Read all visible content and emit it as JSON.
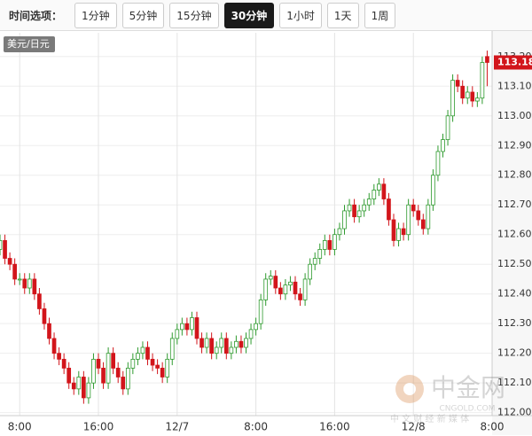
{
  "toolbar": {
    "label": "时间选项：",
    "buttons": [
      "1分钟",
      "5分钟",
      "15分钟",
      "30分钟",
      "1小时",
      "1天",
      "1周"
    ],
    "active": 3
  },
  "chart_data": {
    "type": "candlestick",
    "series_label": "美元/日元",
    "x": [
      -4,
      -3,
      -2,
      -1,
      0,
      1,
      2,
      3,
      4,
      5,
      6,
      7,
      8,
      9,
      10,
      11,
      12,
      13,
      14,
      15,
      16,
      17,
      18,
      19,
      20,
      21,
      22,
      23,
      24,
      25,
      26,
      27,
      28,
      29,
      30,
      31,
      32,
      33,
      34,
      35,
      36,
      37,
      38,
      39,
      40,
      41,
      42,
      43,
      44,
      45,
      46,
      47,
      48,
      49,
      50,
      51,
      52,
      53,
      54,
      55,
      56,
      57,
      58,
      59,
      60,
      61,
      62,
      63,
      64,
      65,
      66,
      67,
      68,
      69,
      70,
      71,
      72,
      73,
      74,
      75,
      76,
      77,
      78,
      79,
      80,
      81,
      82,
      83,
      84,
      85,
      86,
      87,
      88,
      89,
      90,
      91,
      92,
      93,
      94,
      95
    ],
    "open": [
      112.55,
      112.58,
      112.52,
      112.5,
      112.45,
      112.45,
      112.42,
      112.45,
      112.4,
      112.35,
      112.3,
      112.25,
      112.2,
      112.18,
      112.15,
      112.1,
      112.08,
      112.12,
      112.05,
      112.1,
      112.18,
      112.15,
      112.1,
      112.2,
      112.15,
      112.12,
      112.08,
      112.15,
      112.18,
      112.2,
      112.22,
      112.18,
      112.16,
      112.15,
      112.12,
      112.18,
      112.25,
      112.28,
      112.3,
      112.28,
      112.32,
      112.25,
      112.22,
      112.25,
      112.2,
      112.22,
      112.25,
      112.2,
      112.22,
      112.24,
      112.22,
      112.25,
      112.28,
      112.3,
      112.38,
      112.45,
      112.46,
      112.42,
      112.4,
      112.43,
      112.44,
      112.4,
      112.38,
      112.45,
      112.5,
      112.52,
      112.55,
      112.58,
      112.55,
      112.6,
      112.62,
      112.68,
      112.7,
      112.66,
      112.68,
      112.7,
      112.72,
      112.75,
      112.77,
      112.72,
      112.65,
      112.58,
      112.62,
      112.6,
      112.7,
      112.68,
      112.65,
      112.62,
      112.7,
      112.8,
      112.88,
      112.92,
      113.0,
      113.12,
      113.1,
      113.06,
      113.08,
      113.05,
      113.06,
      113.2
    ],
    "high": [
      112.6,
      112.6,
      112.54,
      112.52,
      112.47,
      112.47,
      112.47,
      112.47,
      112.42,
      112.37,
      112.32,
      112.27,
      112.22,
      112.2,
      112.17,
      112.12,
      112.14,
      112.14,
      112.12,
      112.2,
      112.2,
      112.17,
      112.22,
      112.22,
      112.17,
      112.14,
      112.17,
      112.2,
      112.22,
      112.24,
      112.24,
      112.2,
      112.18,
      112.17,
      112.2,
      112.27,
      112.3,
      112.32,
      112.32,
      112.34,
      112.34,
      112.27,
      112.27,
      112.27,
      112.24,
      112.27,
      112.27,
      112.24,
      112.26,
      112.26,
      112.27,
      112.3,
      112.32,
      112.4,
      112.47,
      112.48,
      112.48,
      112.44,
      112.45,
      112.46,
      112.46,
      112.42,
      112.47,
      112.52,
      112.54,
      112.57,
      112.6,
      112.6,
      112.62,
      112.64,
      112.7,
      112.72,
      112.72,
      112.7,
      112.72,
      112.74,
      112.77,
      112.79,
      112.79,
      112.74,
      112.67,
      112.64,
      112.64,
      112.72,
      112.72,
      112.7,
      112.67,
      112.72,
      112.82,
      112.9,
      112.94,
      113.02,
      113.14,
      113.14,
      113.12,
      113.1,
      113.1,
      113.08,
      113.2,
      113.22
    ],
    "low": [
      112.53,
      112.5,
      112.48,
      112.43,
      112.43,
      112.4,
      112.4,
      112.38,
      112.33,
      112.28,
      112.23,
      112.18,
      112.16,
      112.13,
      112.08,
      112.06,
      112.06,
      112.03,
      112.03,
      112.08,
      112.13,
      112.08,
      112.08,
      112.13,
      112.1,
      112.06,
      112.06,
      112.13,
      112.16,
      112.18,
      112.16,
      112.14,
      112.13,
      112.1,
      112.1,
      112.16,
      112.23,
      112.26,
      112.26,
      112.26,
      112.23,
      112.2,
      112.2,
      112.18,
      112.18,
      112.2,
      112.18,
      112.18,
      112.2,
      112.2,
      112.2,
      112.23,
      112.26,
      112.28,
      112.36,
      112.43,
      112.4,
      112.38,
      112.38,
      112.41,
      112.38,
      112.36,
      112.36,
      112.43,
      112.48,
      112.5,
      112.53,
      112.53,
      112.53,
      112.58,
      112.6,
      112.66,
      112.64,
      112.64,
      112.66,
      112.68,
      112.7,
      112.73,
      112.7,
      112.63,
      112.56,
      112.56,
      112.58,
      112.58,
      112.66,
      112.63,
      112.6,
      112.6,
      112.68,
      112.78,
      112.86,
      112.9,
      112.98,
      113.08,
      113.04,
      113.04,
      113.03,
      113.03,
      113.04,
      113.1
    ],
    "close": [
      112.58,
      112.52,
      112.5,
      112.45,
      112.45,
      112.42,
      112.45,
      112.4,
      112.35,
      112.3,
      112.25,
      112.2,
      112.18,
      112.15,
      112.1,
      112.08,
      112.12,
      112.05,
      112.1,
      112.18,
      112.15,
      112.1,
      112.2,
      112.15,
      112.12,
      112.08,
      112.15,
      112.18,
      112.2,
      112.22,
      112.18,
      112.16,
      112.15,
      112.12,
      112.18,
      112.25,
      112.28,
      112.3,
      112.28,
      112.32,
      112.25,
      112.22,
      112.25,
      112.2,
      112.22,
      112.25,
      112.2,
      112.22,
      112.24,
      112.22,
      112.25,
      112.28,
      112.3,
      112.38,
      112.45,
      112.46,
      112.42,
      112.4,
      112.43,
      112.44,
      112.4,
      112.38,
      112.45,
      112.5,
      112.52,
      112.55,
      112.58,
      112.55,
      112.6,
      112.62,
      112.68,
      112.7,
      112.66,
      112.68,
      112.7,
      112.72,
      112.75,
      112.77,
      112.72,
      112.65,
      112.58,
      112.62,
      112.6,
      112.7,
      112.68,
      112.65,
      112.62,
      112.7,
      112.8,
      112.88,
      112.92,
      113.0,
      113.12,
      113.1,
      113.06,
      113.08,
      113.05,
      113.06,
      113.18,
      113.18
    ],
    "up_color": "#2e9a2e",
    "down_color": "#d2151b",
    "xlim": [
      -4,
      96
    ],
    "xticks": [
      {
        "value": 0,
        "label": "8:00"
      },
      {
        "value": 16,
        "label": "16:00"
      },
      {
        "value": 32,
        "label": "12/7"
      },
      {
        "value": 48,
        "label": "8:00"
      },
      {
        "value": 64,
        "label": "16:00"
      },
      {
        "value": 80,
        "label": "12/8"
      },
      {
        "value": 96,
        "label": "8:00"
      }
    ],
    "ylim": [
      111.99,
      113.28
    ],
    "yticks": [
      {
        "value": 113.2,
        "label": "113.20"
      },
      {
        "value": 113.1,
        "label": "113.10"
      },
      {
        "value": 113.0,
        "label": "113.00"
      },
      {
        "value": 112.9,
        "label": "112.90"
      },
      {
        "value": 112.8,
        "label": "112.80"
      },
      {
        "value": 112.7,
        "label": "112.70"
      },
      {
        "value": 112.6,
        "label": "112.60"
      },
      {
        "value": 112.5,
        "label": "112.50"
      },
      {
        "value": 112.4,
        "label": "112.40"
      },
      {
        "value": 112.3,
        "label": "112.30"
      },
      {
        "value": 112.2,
        "label": "112.20"
      },
      {
        "value": 112.1,
        "label": "112.10"
      },
      {
        "value": 112.0,
        "label": "112.00"
      }
    ],
    "grid": true
  },
  "watermark": {
    "brand": "中金网",
    "site": "CNGOLD.COM",
    "slogan": "中 文 财 经 新 媒 体"
  }
}
